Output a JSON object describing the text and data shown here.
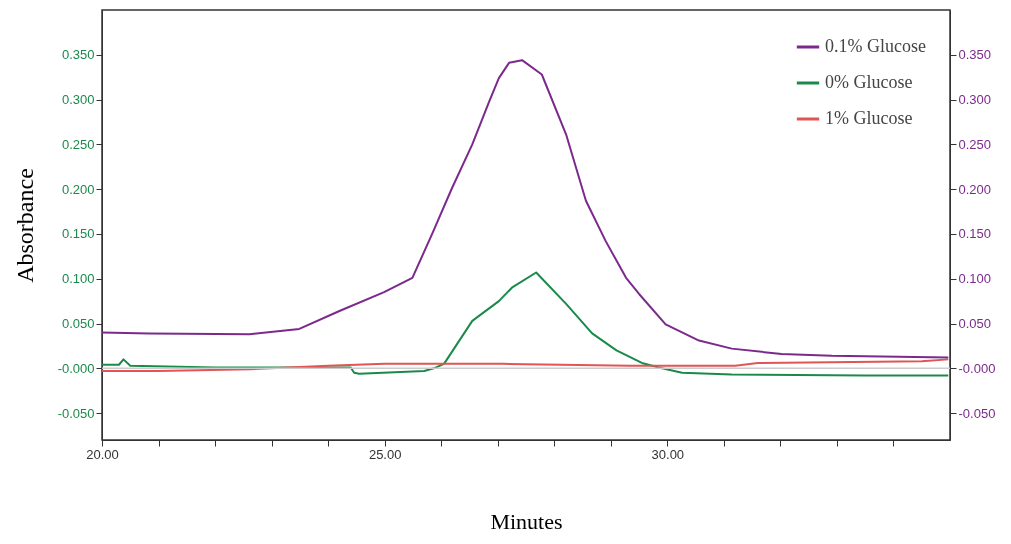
{
  "chart_data": {
    "type": "line",
    "xlabel": "Minutes",
    "ylabel": "Absorbance",
    "legend": "top right",
    "grid": false,
    "line_style": "solid",
    "xlim": [
      20,
      35
    ],
    "xticks": [
      {
        "value": 20,
        "label": "20.00"
      },
      {
        "value": 21,
        "label": null
      },
      {
        "value": 22,
        "label": null
      },
      {
        "value": 23,
        "label": null
      },
      {
        "value": 24,
        "label": null
      },
      {
        "value": 25,
        "label": "25.00"
      },
      {
        "value": 26,
        "label": null
      },
      {
        "value": 27,
        "label": null
      },
      {
        "value": 28,
        "label": null
      },
      {
        "value": 29,
        "label": null
      },
      {
        "value": 30,
        "label": "30.00"
      },
      {
        "value": 31,
        "label": null
      },
      {
        "value": 32,
        "label": null
      },
      {
        "value": 33,
        "label": null
      },
      {
        "value": 34,
        "label": null
      }
    ],
    "ylim": [
      -0.08,
      0.4
    ],
    "yticks": [
      {
        "value": -0.05,
        "label": "-0.050"
      },
      {
        "value": 0,
        "label": "-0.000"
      },
      {
        "value": 0.05,
        "label": "0.050"
      },
      {
        "value": 0.1,
        "label": "0.100"
      },
      {
        "value": 0.15,
        "label": "0.150"
      },
      {
        "value": 0.2,
        "label": "0.200"
      },
      {
        "value": 0.25,
        "label": "0.250"
      },
      {
        "value": 0.3,
        "label": "0.300"
      },
      {
        "value": 0.35,
        "label": "0.350"
      }
    ],
    "y2lim": [
      -0.08,
      0.4
    ],
    "y2ticks": [
      {
        "value": -0.05,
        "label": "-0.050"
      },
      {
        "value": 0,
        "label": "-0.000"
      },
      {
        "value": 0.05,
        "label": "0.050"
      },
      {
        "value": 0.1,
        "label": "0.100"
      },
      {
        "value": 0.15,
        "label": "0.150"
      },
      {
        "value": 0.2,
        "label": "0.200"
      },
      {
        "value": 0.25,
        "label": "0.250"
      },
      {
        "value": 0.3,
        "label": "0.300"
      },
      {
        "value": 0.35,
        "label": "0.350"
      }
    ],
    "ref_lines": [
      {
        "axis": "y",
        "value": 0,
        "color": "#cccccc"
      }
    ],
    "series": [
      {
        "name": "0.1% Glucose",
        "color": "#7b2a8c",
        "axis": "y2",
        "x": [
          20,
          20.84,
          22.61,
          23.49,
          24.2,
          24.99,
          25.49,
          25.84,
          26.19,
          26.55,
          26.85,
          27.02,
          27.2,
          27.43,
          27.78,
          28.21,
          28.56,
          28.91,
          29.27,
          29.5,
          29.97,
          30.56,
          31.14,
          32.02,
          32.91,
          34.09,
          34.97
        ],
        "values": [
          0.04,
          0.039,
          0.038,
          0.044,
          0.064,
          0.085,
          0.101,
          0.15,
          0.201,
          0.25,
          0.298,
          0.324,
          0.341,
          0.344,
          0.328,
          0.261,
          0.187,
          0.142,
          0.101,
          0.083,
          0.049,
          0.031,
          0.022,
          0.016,
          0.014,
          0.013,
          0.012
        ]
      },
      {
        "name": "0% Glucose",
        "color": "#1a8a4a",
        "axis": "y",
        "x": [
          20,
          20.3,
          20.38,
          20.5,
          22,
          24.4,
          24.46,
          24.55,
          25.7,
          25.87,
          26.05,
          26.55,
          27.02,
          27.25,
          27.68,
          28.21,
          28.67,
          29.1,
          29.55,
          29.85,
          30.26,
          31.14,
          33.5,
          34.97
        ],
        "values": [
          0.004,
          0.004,
          0.01,
          0.003,
          0.001,
          0.001,
          -0.005,
          -0.006,
          -0.003,
          0,
          0.005,
          0.053,
          0.075,
          0.09,
          0.107,
          0.072,
          0.039,
          0.02,
          0.006,
          0.001,
          -0.005,
          -0.007,
          -0.008,
          -0.008
        ]
      },
      {
        "name": "1% Glucose",
        "color": "#e05555",
        "axis": "y",
        "x": [
          20,
          21,
          22.61,
          24,
          25,
          26.5,
          27.1,
          29.36,
          31.2,
          31.6,
          34.5,
          34.97
        ],
        "values": [
          -0.003,
          -0.003,
          -0.001,
          0.003,
          0.005,
          0.005,
          0.005,
          0.003,
          0.003,
          0.006,
          0.008,
          0.01
        ]
      }
    ]
  }
}
